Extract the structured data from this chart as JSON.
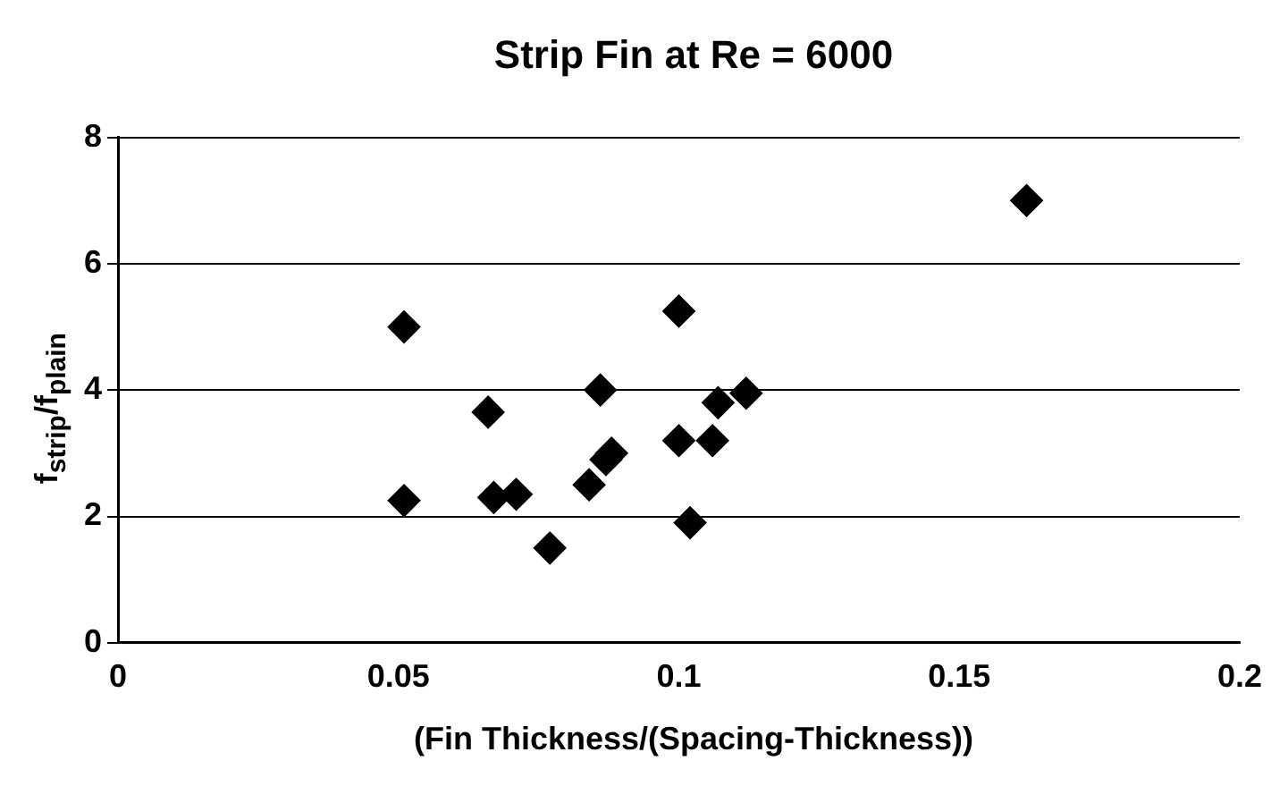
{
  "chart_data": {
    "type": "scatter",
    "title": "Strip Fin at Re = 6000",
    "xlabel": "(Fin Thickness/(Spacing-Thickness))",
    "ylabel": "f$_{strip}$/f$_{plain}$",
    "x": [
      0.051,
      0.051,
      0.066,
      0.067,
      0.071,
      0.077,
      0.084,
      0.086,
      0.087,
      0.088,
      0.1,
      0.1,
      0.102,
      0.106,
      0.107,
      0.112,
      0.162
    ],
    "series": [
      {
        "color": "#000000",
        "values": [
          5.0,
          2.25,
          3.65,
          2.3,
          2.35,
          1.5,
          2.5,
          4.0,
          2.9,
          3.0,
          5.25,
          3.2,
          1.9,
          3.2,
          3.8,
          3.95,
          7.0
        ]
      }
    ],
    "xlim": [
      0,
      0.2
    ],
    "xticks": [
      0,
      0.05,
      0.1,
      0.15,
      0.2
    ],
    "ylim": [
      0,
      8
    ],
    "yticks": [
      0,
      2,
      4,
      6,
      8
    ],
    "grid": "y",
    "marker": "diamond",
    "legend": false
  }
}
